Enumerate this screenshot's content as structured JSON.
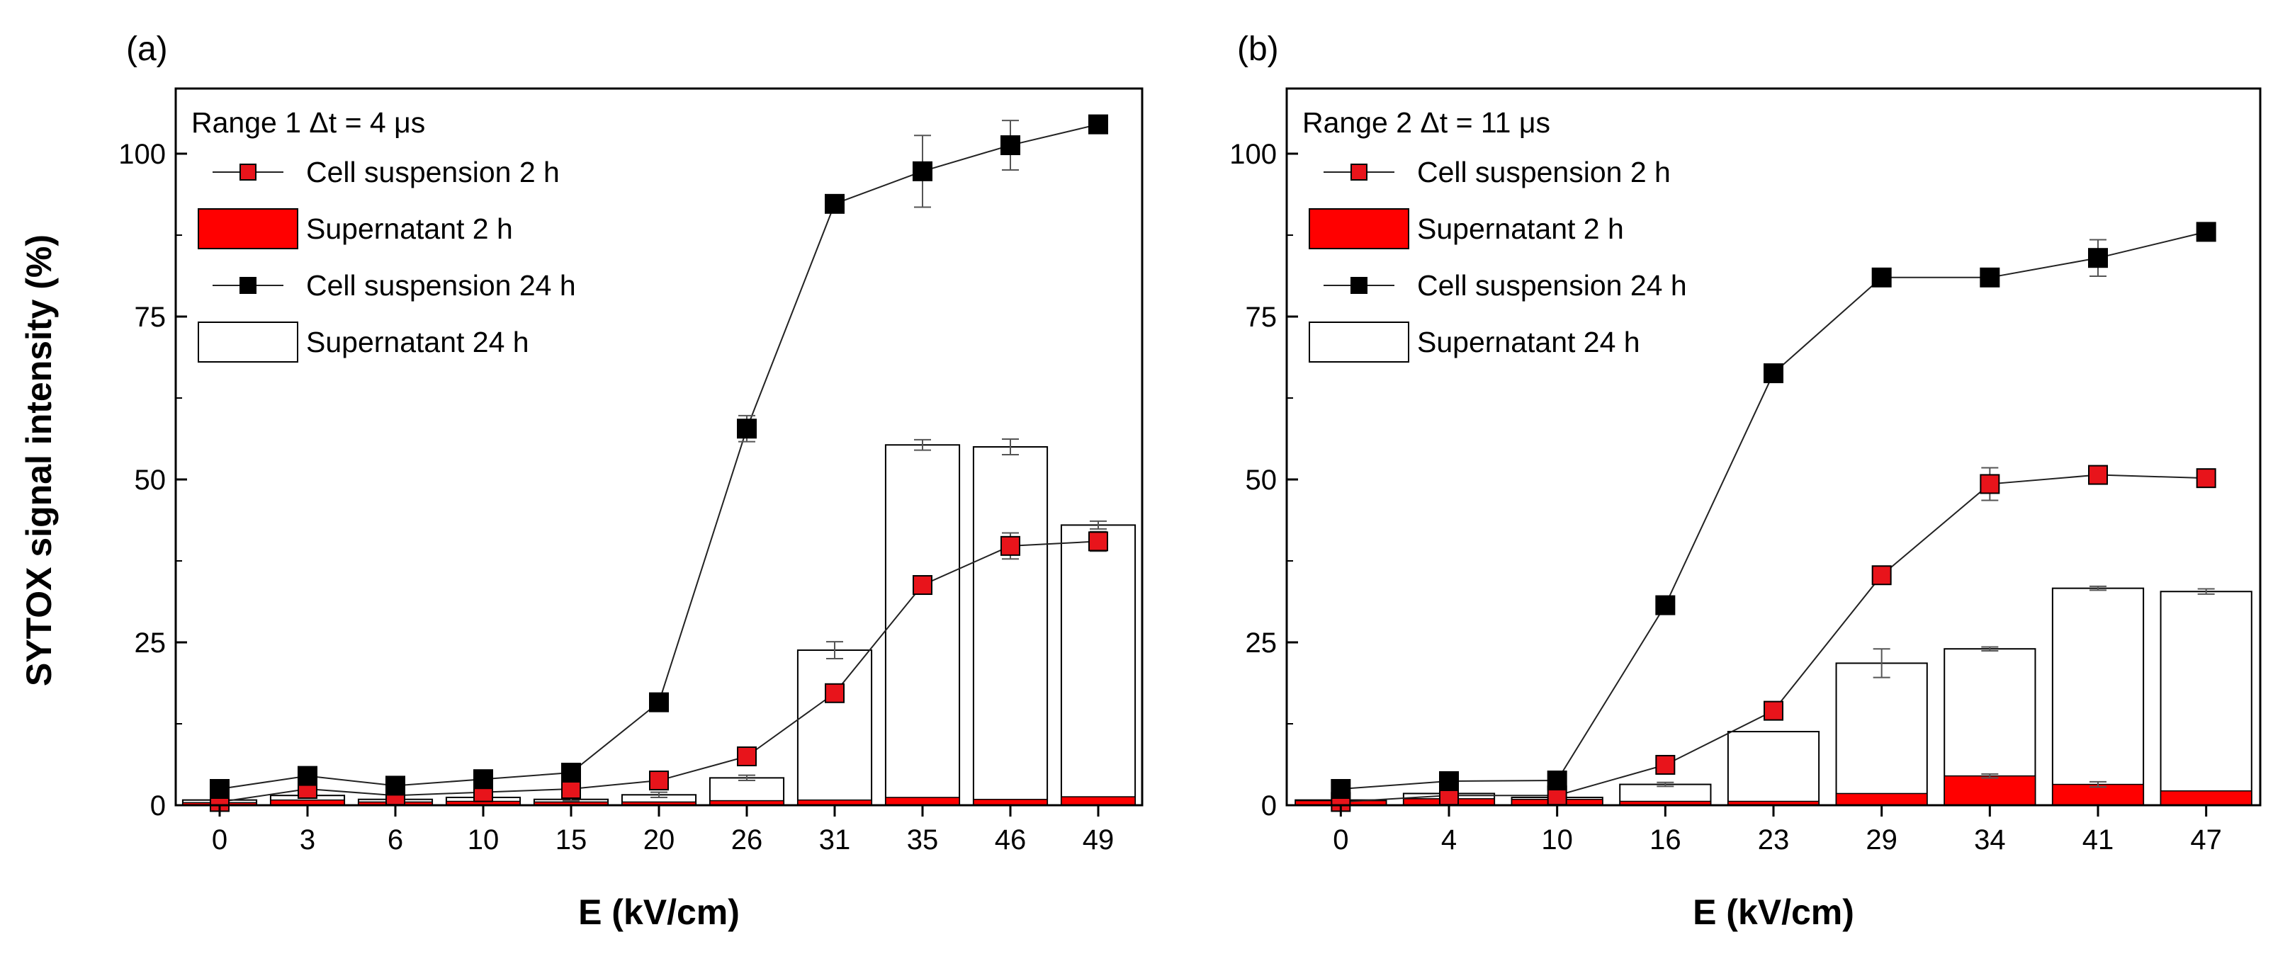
{
  "figure": {
    "ylabel": "SYTOX signal intensity (%)"
  },
  "chart_data": [
    {
      "type": "bar",
      "panel_label": "(a)",
      "xlabel": "E (kV/cm)",
      "ylabel": "SYTOX signal intensity (%)",
      "ylim": [
        0,
        110
      ],
      "yticks": [
        0,
        25,
        50,
        75,
        100
      ],
      "categories": [
        "0",
        "3",
        "6",
        "10",
        "15",
        "20",
        "26",
        "31",
        "35",
        "46",
        "49"
      ],
      "legend_title": "Range 1 Δt = 4 μs",
      "legend_position": "top-left",
      "series": [
        {
          "name": "Cell suspension 2 h",
          "kind": "line-marker",
          "color": "#e8141b",
          "values": [
            0.5,
            2.5,
            1.5,
            2.0,
            2.5,
            3.8,
            7.5,
            17.2,
            33.8,
            39.8,
            40.5
          ],
          "errors": [
            0.3,
            0.5,
            0.4,
            0.4,
            0.5,
            0.6,
            0.8,
            1.0,
            1.2,
            2.0,
            1.5
          ]
        },
        {
          "name": "Supernatant 2 h",
          "kind": "bar",
          "color": "#ff0000",
          "values": [
            0.4,
            0.8,
            0.5,
            0.6,
            0.5,
            0.5,
            0.7,
            0.8,
            1.2,
            0.9,
            1.3
          ],
          "errors": [
            0,
            0,
            0,
            0,
            0,
            0,
            0,
            0,
            0,
            0,
            0
          ]
        },
        {
          "name": "Cell suspension 24 h",
          "kind": "line-marker",
          "color": "#000000",
          "values": [
            2.5,
            4.5,
            3.0,
            4.0,
            5.0,
            15.8,
            57.8,
            92.3,
            97.3,
            101.3,
            104.5
          ],
          "errors": [
            0.4,
            0.5,
            0.4,
            0.5,
            0.6,
            0.8,
            2.0,
            0.8,
            5.5,
            3.8,
            0.8
          ]
        },
        {
          "name": "Supernatant 24 h",
          "kind": "bar",
          "color": "#ffffff",
          "values": [
            0.8,
            1.5,
            0.9,
            1.2,
            0.9,
            1.6,
            4.2,
            23.8,
            55.3,
            55.0,
            43.0
          ],
          "errors": [
            0,
            0.3,
            0.2,
            0.3,
            0.2,
            0.4,
            0.4,
            1.3,
            0.8,
            1.2,
            0.6
          ]
        }
      ]
    },
    {
      "type": "bar",
      "panel_label": "(b)",
      "xlabel": "E (kV/cm)",
      "ylabel": "",
      "ylim": [
        0,
        110
      ],
      "yticks": [
        0,
        25,
        50,
        75,
        100
      ],
      "categories": [
        "0",
        "4",
        "10",
        "16",
        "23",
        "29",
        "34",
        "41",
        "47"
      ],
      "legend_title": "Range 2 Δt = 11 μs",
      "legend_position": "top-left",
      "series": [
        {
          "name": "Cell suspension 2 h",
          "kind": "line-marker",
          "color": "#e8141b",
          "values": [
            0.5,
            1.5,
            1.5,
            6.2,
            14.5,
            35.3,
            49.3,
            50.7,
            50.2
          ],
          "errors": [
            0.3,
            0.4,
            0.4,
            0.8,
            0.8,
            1.0,
            2.5,
            0.8,
            1.2
          ]
        },
        {
          "name": "Supernatant 2 h",
          "kind": "bar",
          "color": "#ff0000",
          "values": [
            0.7,
            1.0,
            0.9,
            0.6,
            0.6,
            1.8,
            4.5,
            3.2,
            2.2
          ],
          "errors": [
            0,
            0,
            0,
            0,
            0,
            0,
            0.3,
            0.4,
            0
          ]
        },
        {
          "name": "Cell suspension 24 h",
          "kind": "line-marker",
          "color": "#000000",
          "values": [
            2.5,
            3.7,
            3.8,
            30.7,
            66.3,
            81.0,
            81.0,
            84.0,
            88.0
          ],
          "errors": [
            0.4,
            0.4,
            0.4,
            0.6,
            1.2,
            0.6,
            0.6,
            2.8,
            0.8
          ]
        },
        {
          "name": "Supernatant 24 h",
          "kind": "bar",
          "color": "#ffffff",
          "values": [
            0.8,
            1.8,
            1.2,
            3.2,
            11.3,
            21.8,
            24.0,
            33.3,
            32.8
          ],
          "errors": [
            0,
            0,
            0,
            0.3,
            0,
            2.2,
            0.3,
            0.3,
            0.4
          ]
        }
      ]
    }
  ]
}
